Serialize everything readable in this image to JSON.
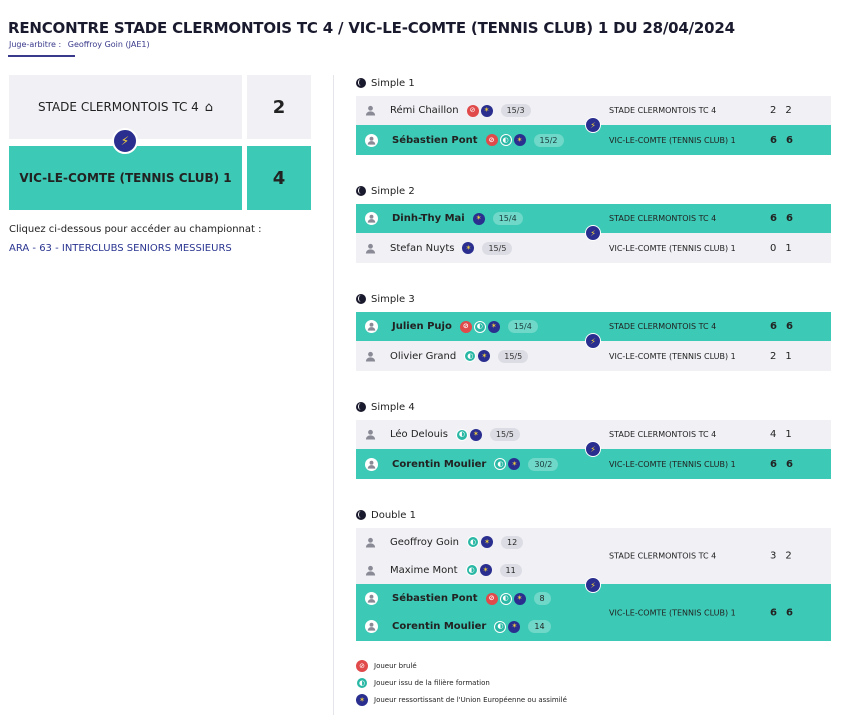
{
  "header": {
    "title": "RENCONTRE STADE CLERMONTOIS TC 4 / VIC-LE-COMTE (TENNIS CLUB) 1 DU 28/04/2024",
    "referee_label": "Juge-arbitre :",
    "referee_name": "Geoffroy Goin (JAE1)"
  },
  "scoreboard": {
    "home": {
      "name": "STADE CLERMONTOIS TC 4",
      "score": "2",
      "icon": "house-icon"
    },
    "away": {
      "name": "VIC-LE-COMTE (TENNIS CLUB) 1",
      "score": "4"
    },
    "vs_icon": "lightning-icon"
  },
  "championship": {
    "prompt": "Cliquez ci-dessous pour accéder au championnat :",
    "link": "ARA - 63 - INTERCLUBS SENIORS MESSIEURS"
  },
  "matches": [
    {
      "label": "Simple 1",
      "rows": [
        {
          "player": "Rémi Chaillon",
          "rank": "15/3",
          "team": "STADE CLERMONTOIS TC 4",
          "sets": [
            "2",
            "2"
          ],
          "winner": false,
          "badges": [
            "burned",
            "eu"
          ]
        },
        {
          "player": "Sébastien Pont",
          "rank": "15/2",
          "team": "VIC-LE-COMTE (TENNIS CLUB) 1",
          "sets": [
            "6",
            "6"
          ],
          "winner": true,
          "badges": [
            "burned",
            "formation",
            "eu"
          ]
        }
      ]
    },
    {
      "label": "Simple 2",
      "rows": [
        {
          "player": "Dinh-Thy Mai",
          "rank": "15/4",
          "team": "STADE CLERMONTOIS TC 4",
          "sets": [
            "6",
            "6"
          ],
          "winner": true,
          "badges": [
            "eu"
          ]
        },
        {
          "player": "Stefan Nuyts",
          "rank": "15/5",
          "team": "VIC-LE-COMTE (TENNIS CLUB) 1",
          "sets": [
            "0",
            "1"
          ],
          "winner": false,
          "badges": [
            "eu"
          ]
        }
      ]
    },
    {
      "label": "Simple 3",
      "rows": [
        {
          "player": "Julien Pujo",
          "rank": "15/4",
          "team": "STADE CLERMONTOIS TC 4",
          "sets": [
            "6",
            "6"
          ],
          "winner": true,
          "badges": [
            "burned",
            "formation",
            "eu"
          ]
        },
        {
          "player": "Olivier Grand",
          "rank": "15/5",
          "team": "VIC-LE-COMTE (TENNIS CLUB) 1",
          "sets": [
            "2",
            "1"
          ],
          "winner": false,
          "badges": [
            "formation",
            "eu"
          ]
        }
      ]
    },
    {
      "label": "Simple 4",
      "rows": [
        {
          "player": "Léo Delouis",
          "rank": "15/5",
          "team": "STADE CLERMONTOIS TC 4",
          "sets": [
            "4",
            "1"
          ],
          "winner": false,
          "badges": [
            "formation",
            "eu"
          ]
        },
        {
          "player": "Corentin Moulier",
          "rank": "30/2",
          "team": "VIC-LE-COMTE (TENNIS CLUB) 1",
          "sets": [
            "6",
            "6"
          ],
          "winner": true,
          "badges": [
            "formation",
            "eu"
          ]
        }
      ]
    }
  ],
  "double": {
    "label": "Double 1",
    "home": {
      "players": [
        {
          "player": "Geoffroy Goin",
          "rank": "12",
          "badges": [
            "formation",
            "eu"
          ]
        },
        {
          "player": "Maxime Mont",
          "rank": "11",
          "badges": [
            "formation",
            "eu"
          ]
        }
      ],
      "team": "STADE CLERMONTOIS TC 4",
      "sets": [
        "3",
        "2"
      ]
    },
    "away": {
      "players": [
        {
          "player": "Sébastien Pont",
          "rank": "8",
          "badges": [
            "burned",
            "formation",
            "eu"
          ]
        },
        {
          "player": "Corentin Moulier",
          "rank": "14",
          "badges": [
            "formation",
            "eu"
          ]
        }
      ],
      "team": "VIC-LE-COMTE (TENNIS CLUB) 1",
      "sets": [
        "6",
        "6"
      ]
    }
  },
  "legend": {
    "burned": "Joueur brulé",
    "formation": "Joueur issu de la filière formation",
    "eu": "Joueur ressortissant de l'Union Européenne ou assimilé"
  },
  "colors": {
    "winner_bg": "#3cc9b5",
    "loser_bg": "#f0f0f5",
    "accent": "#2a2f8f",
    "burned": "#e14a4a"
  }
}
